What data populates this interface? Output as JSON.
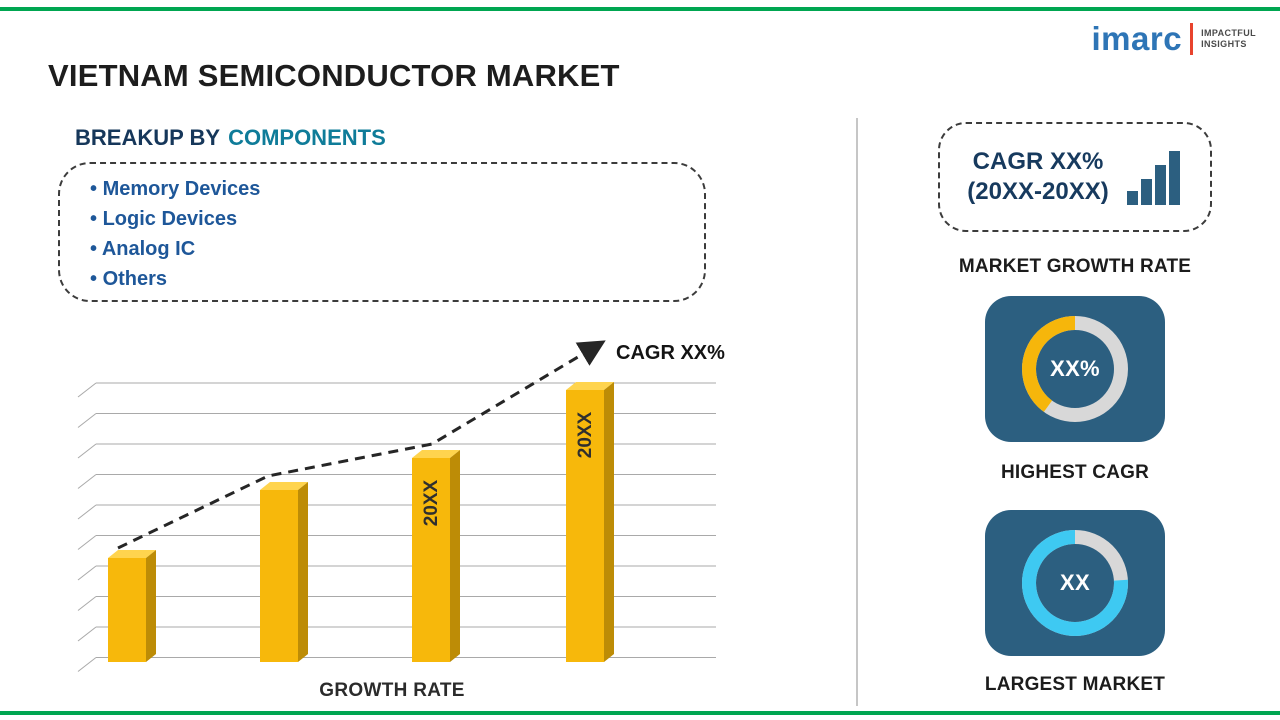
{
  "logo": {
    "brand": "imarc",
    "tagline_line1": "IMPACTFUL",
    "tagline_line2": "INSIGHTS"
  },
  "title": "VIETNAM SEMICONDUCTOR MARKET",
  "breakup": {
    "heading_prefix": "BREAKUP BY",
    "heading_highlight": "COMPONENTS",
    "items": [
      "Memory Devices",
      "Logic Devices",
      "Analog IC",
      "Others"
    ]
  },
  "chart_data": {
    "type": "bar",
    "categories": [
      "",
      "",
      "20XX",
      "20XX"
    ],
    "values": [
      26,
      43,
      51,
      68
    ],
    "xlabel": "GROWTH RATE",
    "grid": true,
    "trend_label": "CAGR XX%",
    "bar_color": "#F7B80B"
  },
  "stats": {
    "growth_badge": {
      "line1": "CAGR XX%",
      "line2": "(20XX-20XX)",
      "caption": "MARKET GROWTH RATE"
    },
    "highest_cagr": {
      "value": "XX%",
      "caption": "HIGHEST CAGR",
      "donut_percent": 40,
      "arc_color": "#F6B60B"
    },
    "largest_market": {
      "value": "XX",
      "caption": "LARGEST MARKET",
      "donut_percent": 76,
      "arc_color": "#3EC9F2"
    }
  },
  "colors": {
    "accent_line": "#00A651",
    "card_bg": "#2C5F80",
    "donut_track": "#D8D8D8",
    "bar_side": "#BD8C06",
    "bar_top": "#FFD44E",
    "grid_line": "#A9A9A9",
    "trend": "#262626",
    "brand_blue": "#2E75B6",
    "brand_red": "#E8432D",
    "heading_highlight": "#0F7C99",
    "list_item_blue": "#1E5799"
  }
}
